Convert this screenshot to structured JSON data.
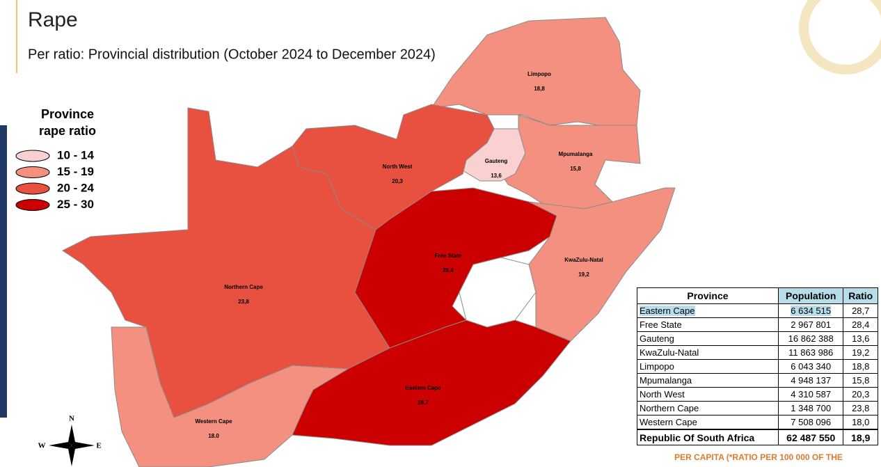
{
  "header": {
    "title": "Rape",
    "subtitle": "Per ratio: Provincial distribution (October 2024 to December 2024)"
  },
  "legend": {
    "title": [
      "Province",
      "rape ratio"
    ],
    "items": [
      {
        "label": "10 - 14",
        "color": "#fbd0d0"
      },
      {
        "label": "15 - 19",
        "color": "#f4907f"
      },
      {
        "label": "20 - 24",
        "color": "#e8513f"
      },
      {
        "label": "25 - 30",
        "color": "#cc0000"
      }
    ]
  },
  "map": {
    "regions": [
      {
        "name": "Limpopo",
        "value": "18,8",
        "color": "#f4907f"
      },
      {
        "name": "Mpumalanga",
        "value": "15,8",
        "color": "#f4907f"
      },
      {
        "name": "Gauteng",
        "value": "13,6",
        "color": "#fbd0d0"
      },
      {
        "name": "North West",
        "value": "20,3",
        "color": "#e8513f"
      },
      {
        "name": "Northern Cape",
        "value": "23,8",
        "color": "#e8513f"
      },
      {
        "name": "Free State",
        "value": "28,4",
        "color": "#cc0000"
      },
      {
        "name": "KwaZulu-Natal",
        "value": "19,2",
        "color": "#f4907f"
      },
      {
        "name": "Eastern Cape",
        "value": "28,7",
        "color": "#cc0000"
      },
      {
        "name": "Western Cape",
        "value": "18.0",
        "color": "#f4907f"
      }
    ]
  },
  "compass": [
    "N",
    "W",
    "E"
  ],
  "table": {
    "columns": [
      "Province",
      "Population",
      "Ratio"
    ],
    "rows": [
      [
        "Eastern Cape",
        "6 634 515",
        "28,7"
      ],
      [
        "Free State",
        "2 967 801",
        "28,4"
      ],
      [
        "Gauteng",
        "16 862 388",
        "13,6"
      ],
      [
        "KwaZulu-Natal",
        "11 863 986",
        "19,2"
      ],
      [
        "Limpopo",
        "6 043 340",
        "18,8"
      ],
      [
        "Mpumalanga",
        "4 948 137",
        "15,8"
      ],
      [
        "North West",
        "4 310 587",
        "20,3"
      ],
      [
        "Northern Cape",
        "1 348 700",
        "23,8"
      ],
      [
        "Western Cape",
        "7 508 096",
        "18,0"
      ]
    ],
    "total": [
      "Republic Of South Africa",
      "62 487 550",
      "18,9"
    ]
  },
  "footnote": "PER CAPITA (*RATIO PER 100 000 OF THE"
}
